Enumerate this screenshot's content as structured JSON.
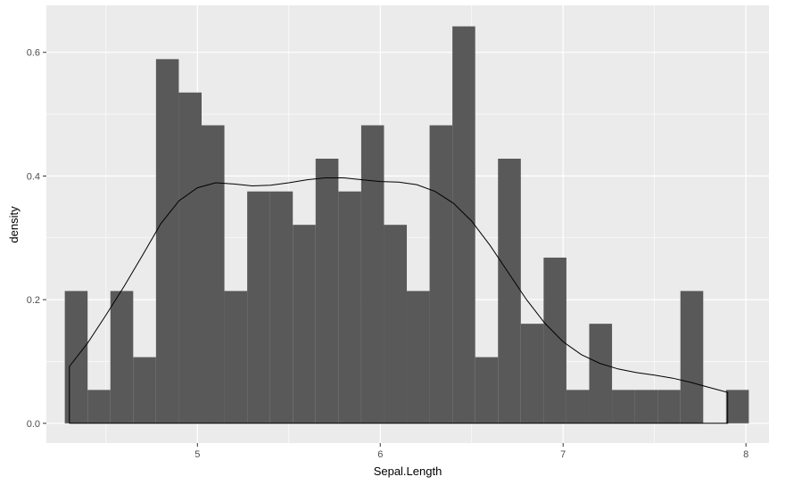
{
  "chart_data": {
    "type": "bar",
    "xlabel": "Sepal.Length",
    "ylabel": "density",
    "xlim": [
      4.174,
      8.126
    ],
    "ylim": [
      -0.032,
      0.676
    ],
    "x_ticks": [
      5,
      6,
      7,
      8
    ],
    "x_tick_labels": [
      "5",
      "6",
      "7",
      "8"
    ],
    "y_ticks": [
      0.0,
      0.2,
      0.4,
      0.6
    ],
    "y_tick_labels": [
      "0.0",
      "0.2",
      "0.4",
      "0.6"
    ],
    "grid": true,
    "bar_color": "#595959",
    "panel_background": "#ebebeb",
    "histogram": {
      "bins": [
        {
          "xmin": 4.2747,
          "xmax": 4.3994,
          "density": 0.214
        },
        {
          "xmin": 4.3994,
          "xmax": 4.5241,
          "density": 0.054
        },
        {
          "xmin": 4.5241,
          "xmax": 4.6488,
          "density": 0.214
        },
        {
          "xmin": 4.6488,
          "xmax": 4.7735,
          "density": 0.107
        },
        {
          "xmin": 4.7735,
          "xmax": 4.8982,
          "density": 0.589
        },
        {
          "xmin": 4.8982,
          "xmax": 5.0229,
          "density": 0.535
        },
        {
          "xmin": 5.0229,
          "xmax": 5.1476,
          "density": 0.482
        },
        {
          "xmin": 5.1476,
          "xmax": 5.2723,
          "density": 0.214
        },
        {
          "xmin": 5.2723,
          "xmax": 5.397,
          "density": 0.375
        },
        {
          "xmin": 5.397,
          "xmax": 5.5217,
          "density": 0.375
        },
        {
          "xmin": 5.5217,
          "xmax": 5.6464,
          "density": 0.321
        },
        {
          "xmin": 5.6464,
          "xmax": 5.7711,
          "density": 0.428
        },
        {
          "xmin": 5.7711,
          "xmax": 5.8958,
          "density": 0.375
        },
        {
          "xmin": 5.8958,
          "xmax": 6.0205,
          "density": 0.482
        },
        {
          "xmin": 6.0205,
          "xmax": 6.1452,
          "density": 0.321
        },
        {
          "xmin": 6.1452,
          "xmax": 6.2699,
          "density": 0.214
        },
        {
          "xmin": 6.2699,
          "xmax": 6.3946,
          "density": 0.482
        },
        {
          "xmin": 6.3946,
          "xmax": 6.5193,
          "density": 0.642
        },
        {
          "xmin": 6.5193,
          "xmax": 6.644,
          "density": 0.107
        },
        {
          "xmin": 6.644,
          "xmax": 6.7687,
          "density": 0.428
        },
        {
          "xmin": 6.7687,
          "xmax": 6.8934,
          "density": 0.161
        },
        {
          "xmin": 6.8934,
          "xmax": 7.0181,
          "density": 0.268
        },
        {
          "xmin": 7.0181,
          "xmax": 7.1428,
          "density": 0.054
        },
        {
          "xmin": 7.1428,
          "xmax": 7.2675,
          "density": 0.161
        },
        {
          "xmin": 7.2675,
          "xmax": 7.3922,
          "density": 0.054
        },
        {
          "xmin": 7.3922,
          "xmax": 7.5169,
          "density": 0.054
        },
        {
          "xmin": 7.5169,
          "xmax": 7.6416,
          "density": 0.054
        },
        {
          "xmin": 7.6416,
          "xmax": 7.7663,
          "density": 0.214
        },
        {
          "xmin": 7.7663,
          "xmax": 7.891,
          "density": 0.0
        },
        {
          "xmin": 7.891,
          "xmax": 8.0157,
          "density": 0.054
        }
      ]
    },
    "density_curve": {
      "color": "#000000",
      "points": [
        {
          "x": 4.3,
          "y": 0.0
        },
        {
          "x": 4.3,
          "y": 0.092
        },
        {
          "x": 4.4,
          "y": 0.13
        },
        {
          "x": 4.5,
          "y": 0.175
        },
        {
          "x": 4.6,
          "y": 0.222
        },
        {
          "x": 4.7,
          "y": 0.272
        },
        {
          "x": 4.8,
          "y": 0.323
        },
        {
          "x": 4.9,
          "y": 0.36
        },
        {
          "x": 5.0,
          "y": 0.381
        },
        {
          "x": 5.1,
          "y": 0.389
        },
        {
          "x": 5.2,
          "y": 0.387
        },
        {
          "x": 5.3,
          "y": 0.384
        },
        {
          "x": 5.4,
          "y": 0.385
        },
        {
          "x": 5.5,
          "y": 0.389
        },
        {
          "x": 5.6,
          "y": 0.394
        },
        {
          "x": 5.7,
          "y": 0.397
        },
        {
          "x": 5.8,
          "y": 0.397
        },
        {
          "x": 5.9,
          "y": 0.394
        },
        {
          "x": 6.0,
          "y": 0.391
        },
        {
          "x": 6.1,
          "y": 0.39
        },
        {
          "x": 6.2,
          "y": 0.386
        },
        {
          "x": 6.3,
          "y": 0.375
        },
        {
          "x": 6.4,
          "y": 0.356
        },
        {
          "x": 6.5,
          "y": 0.327
        },
        {
          "x": 6.6,
          "y": 0.288
        },
        {
          "x": 6.7,
          "y": 0.244
        },
        {
          "x": 6.8,
          "y": 0.2
        },
        {
          "x": 6.9,
          "y": 0.162
        },
        {
          "x": 7.0,
          "y": 0.132
        },
        {
          "x": 7.1,
          "y": 0.111
        },
        {
          "x": 7.2,
          "y": 0.097
        },
        {
          "x": 7.3,
          "y": 0.088
        },
        {
          "x": 7.4,
          "y": 0.082
        },
        {
          "x": 7.5,
          "y": 0.078
        },
        {
          "x": 7.6,
          "y": 0.073
        },
        {
          "x": 7.7,
          "y": 0.066
        },
        {
          "x": 7.8,
          "y": 0.058
        },
        {
          "x": 7.9,
          "y": 0.05
        },
        {
          "x": 7.9,
          "y": 0.0
        },
        {
          "x": 4.3,
          "y": 0.0
        }
      ]
    }
  }
}
